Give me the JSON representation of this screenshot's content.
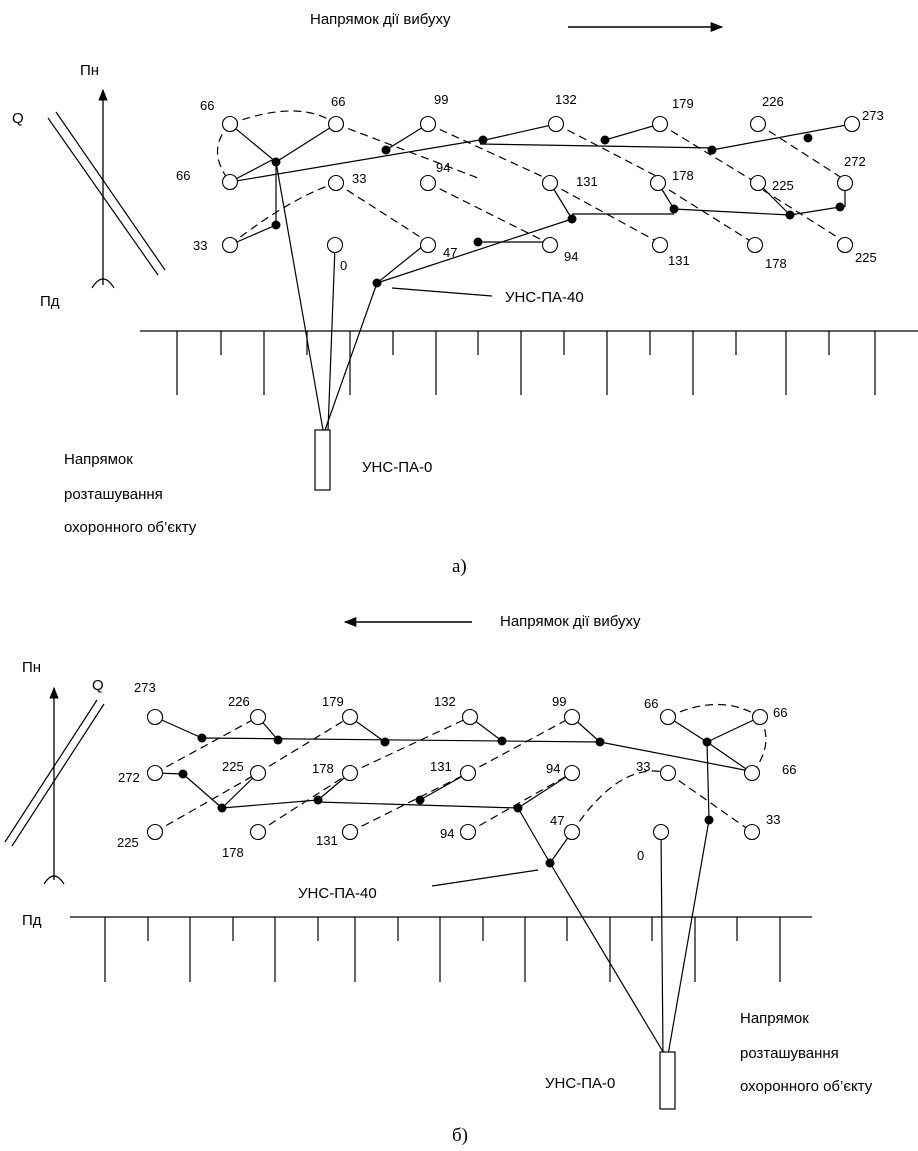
{
  "diagram_a": {
    "blast_direction": "Напрямок дії вибуху",
    "north": "Пн",
    "south": "Пд",
    "q": "Q",
    "unspa40": "УНС-ПА-40",
    "unspa0": "УНС-ПА-0",
    "object_direction": [
      "Напрямок",
      "розташування",
      "охоронного об’єкту"
    ],
    "caption": "а)",
    "holes": [
      {
        "id": "a66a",
        "label": "66"
      },
      {
        "id": "a66b",
        "label": "66"
      },
      {
        "id": "a66c",
        "label": "66"
      },
      {
        "id": "a99",
        "label": "99"
      },
      {
        "id": "a132",
        "label": "132"
      },
      {
        "id": "a179",
        "label": "179"
      },
      {
        "id": "a226",
        "label": "226"
      },
      {
        "id": "a273",
        "label": "273"
      },
      {
        "id": "a33a",
        "label": "33"
      },
      {
        "id": "a33b",
        "label": "33"
      },
      {
        "id": "a94a",
        "label": "94"
      },
      {
        "id": "a131a",
        "label": "131"
      },
      {
        "id": "a178a",
        "label": "178"
      },
      {
        "id": "a225a",
        "label": "225"
      },
      {
        "id": "a272",
        "label": "272"
      },
      {
        "id": "a0",
        "label": "0"
      },
      {
        "id": "a47",
        "label": "47"
      },
      {
        "id": "a94b",
        "label": "94"
      },
      {
        "id": "a131b",
        "label": "131"
      },
      {
        "id": "a178b",
        "label": "178"
      },
      {
        "id": "a225b",
        "label": "225"
      }
    ]
  },
  "diagram_b": {
    "blast_direction": "Напрямок дії вибуху",
    "north": "Пн",
    "south": "Пд",
    "q": "Q",
    "unspa40": "УНС-ПА-40",
    "unspa0": "УНС-ПА-0",
    "object_direction": [
      "Напрямок",
      "розташування",
      "охоронного об’єкту"
    ],
    "caption": "б)",
    "holes": [
      {
        "id": "b273",
        "label": "273"
      },
      {
        "id": "b226",
        "label": "226"
      },
      {
        "id": "b179",
        "label": "179"
      },
      {
        "id": "b132",
        "label": "132"
      },
      {
        "id": "b99",
        "label": "99"
      },
      {
        "id": "b66a",
        "label": "66"
      },
      {
        "id": "b66b",
        "label": "66"
      },
      {
        "id": "b66c",
        "label": "66"
      },
      {
        "id": "b272",
        "label": "272"
      },
      {
        "id": "b225a",
        "label": "225"
      },
      {
        "id": "b178a",
        "label": "178"
      },
      {
        "id": "b131a",
        "label": "131"
      },
      {
        "id": "b94a",
        "label": "94"
      },
      {
        "id": "b33a",
        "label": "33"
      },
      {
        "id": "b33b",
        "label": "33"
      },
      {
        "id": "b225b",
        "label": "225"
      },
      {
        "id": "b178b",
        "label": "178"
      },
      {
        "id": "b131b",
        "label": "131"
      },
      {
        "id": "b94b",
        "label": "94"
      },
      {
        "id": "b47",
        "label": "47"
      },
      {
        "id": "b0",
        "label": "0"
      }
    ]
  },
  "colors": {
    "ink": "#000000",
    "background": "#ffffff"
  },
  "icons": {
    "arrow": "arrow-icon",
    "compass": "north-arrow-icon",
    "charge": "charge-box-icon"
  }
}
